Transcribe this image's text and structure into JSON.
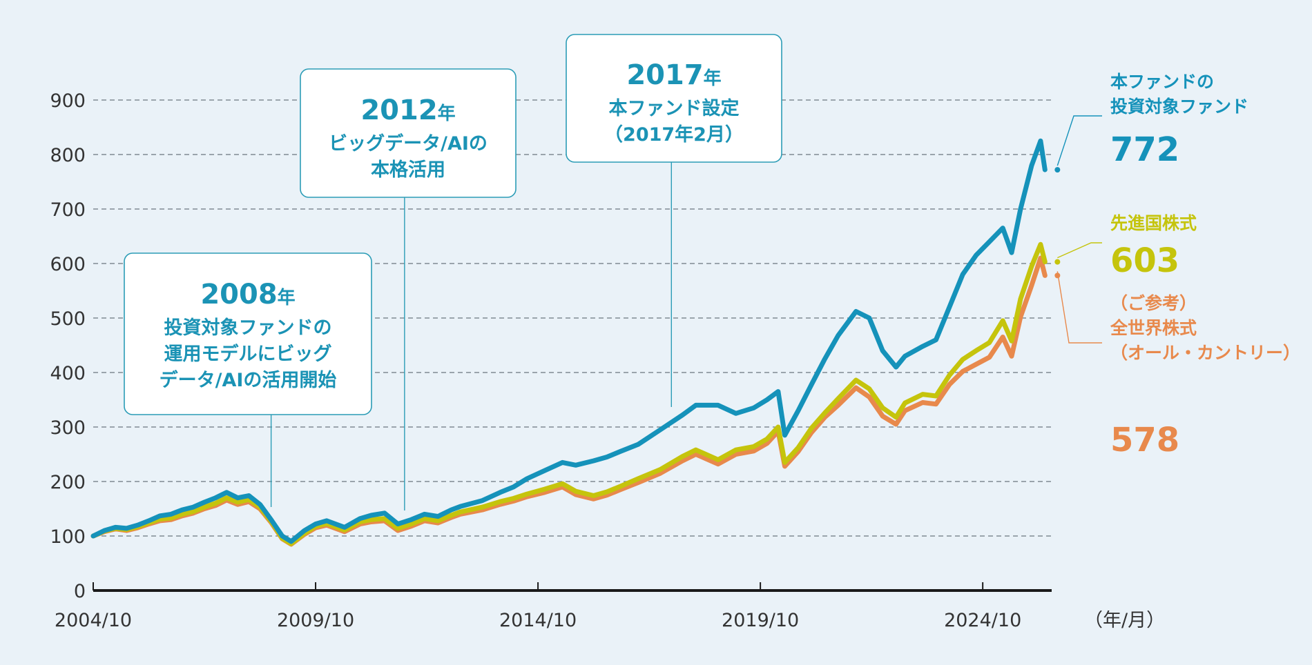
{
  "chart_data": {
    "type": "line",
    "title": "",
    "xlabel": "",
    "ylabel": "",
    "x_unit_label": "（年/月）",
    "ylim": [
      0,
      900
    ],
    "xlim": [
      2004.75,
      2026.3
    ],
    "y_ticks": [
      "0",
      "100",
      "200",
      "300",
      "400",
      "500",
      "600",
      "700",
      "800",
      "900"
    ],
    "x_ticks": [
      {
        "x": 2004.75,
        "label": "2004/10"
      },
      {
        "x": 2009.75,
        "label": "2009/10"
      },
      {
        "x": 2014.75,
        "label": "2014/10"
      },
      {
        "x": 2019.75,
        "label": "2019/10"
      },
      {
        "x": 2024.75,
        "label": "2024/10"
      }
    ],
    "grid": true,
    "series": [
      {
        "key": "world",
        "label": [
          "（ご参考）",
          "全世界株式",
          "（オール・カントリー）"
        ],
        "end_value": "578",
        "color": "#e8894c",
        "points": [
          [
            2004.75,
            100
          ],
          [
            2005.0,
            108
          ],
          [
            2005.25,
            113
          ],
          [
            2005.5,
            110
          ],
          [
            2005.75,
            115
          ],
          [
            2006.0,
            122
          ],
          [
            2006.25,
            128
          ],
          [
            2006.5,
            130
          ],
          [
            2006.75,
            137
          ],
          [
            2007.0,
            142
          ],
          [
            2007.25,
            150
          ],
          [
            2007.5,
            156
          ],
          [
            2007.75,
            166
          ],
          [
            2008.0,
            158
          ],
          [
            2008.25,
            163
          ],
          [
            2008.5,
            150
          ],
          [
            2008.75,
            125
          ],
          [
            2009.0,
            95
          ],
          [
            2009.2,
            85
          ],
          [
            2009.5,
            103
          ],
          [
            2009.75,
            115
          ],
          [
            2010.0,
            120
          ],
          [
            2010.4,
            108
          ],
          [
            2010.75,
            122
          ],
          [
            2011.0,
            126
          ],
          [
            2011.3,
            128
          ],
          [
            2011.6,
            110
          ],
          [
            2011.9,
            118
          ],
          [
            2012.2,
            128
          ],
          [
            2012.5,
            124
          ],
          [
            2012.8,
            134
          ],
          [
            2013.0,
            140
          ],
          [
            2013.5,
            148
          ],
          [
            2013.9,
            158
          ],
          [
            2014.2,
            164
          ],
          [
            2014.5,
            172
          ],
          [
            2014.9,
            180
          ],
          [
            2015.3,
            190
          ],
          [
            2015.6,
            176
          ],
          [
            2016.0,
            168
          ],
          [
            2016.3,
            175
          ],
          [
            2016.6,
            185
          ],
          [
            2017.0,
            198
          ],
          [
            2017.5,
            215
          ],
          [
            2018.0,
            238
          ],
          [
            2018.3,
            250
          ],
          [
            2018.8,
            232
          ],
          [
            2019.2,
            250
          ],
          [
            2019.6,
            256
          ],
          [
            2019.9,
            270
          ],
          [
            2020.15,
            292
          ],
          [
            2020.3,
            228
          ],
          [
            2020.6,
            255
          ],
          [
            2020.9,
            290
          ],
          [
            2021.2,
            318
          ],
          [
            2021.5,
            340
          ],
          [
            2021.9,
            372
          ],
          [
            2022.2,
            355
          ],
          [
            2022.5,
            320
          ],
          [
            2022.8,
            305
          ],
          [
            2023.0,
            330
          ],
          [
            2023.4,
            345
          ],
          [
            2023.7,
            342
          ],
          [
            2024.0,
            378
          ],
          [
            2024.3,
            402
          ],
          [
            2024.6,
            415
          ],
          [
            2024.9,
            428
          ],
          [
            2025.2,
            465
          ],
          [
            2025.4,
            430
          ],
          [
            2025.6,
            502
          ],
          [
            2025.85,
            560
          ],
          [
            2026.05,
            610
          ],
          [
            2026.15,
            578
          ]
        ]
      },
      {
        "key": "developed",
        "label": [
          "先進国株式"
        ],
        "end_value": "603",
        "color": "#c5c40c",
        "points": [
          [
            2004.75,
            100
          ],
          [
            2005.0,
            109
          ],
          [
            2005.25,
            114
          ],
          [
            2005.5,
            112
          ],
          [
            2005.75,
            117
          ],
          [
            2006.0,
            124
          ],
          [
            2006.25,
            131
          ],
          [
            2006.5,
            133
          ],
          [
            2006.75,
            140
          ],
          [
            2007.0,
            145
          ],
          [
            2007.25,
            153
          ],
          [
            2007.5,
            160
          ],
          [
            2007.75,
            170
          ],
          [
            2008.0,
            162
          ],
          [
            2008.25,
            167
          ],
          [
            2008.5,
            153
          ],
          [
            2008.75,
            127
          ],
          [
            2009.0,
            96
          ],
          [
            2009.2,
            86
          ],
          [
            2009.5,
            105
          ],
          [
            2009.75,
            118
          ],
          [
            2010.0,
            123
          ],
          [
            2010.4,
            111
          ],
          [
            2010.75,
            126
          ],
          [
            2011.0,
            130
          ],
          [
            2011.3,
            132
          ],
          [
            2011.6,
            114
          ],
          [
            2011.9,
            122
          ],
          [
            2012.2,
            132
          ],
          [
            2012.5,
            128
          ],
          [
            2012.8,
            138
          ],
          [
            2013.0,
            144
          ],
          [
            2013.5,
            153
          ],
          [
            2013.9,
            163
          ],
          [
            2014.2,
            169
          ],
          [
            2014.5,
            177
          ],
          [
            2014.9,
            186
          ],
          [
            2015.3,
            196
          ],
          [
            2015.6,
            182
          ],
          [
            2016.0,
            174
          ],
          [
            2016.3,
            181
          ],
          [
            2016.6,
            191
          ],
          [
            2017.0,
            205
          ],
          [
            2017.5,
            222
          ],
          [
            2018.0,
            246
          ],
          [
            2018.3,
            258
          ],
          [
            2018.8,
            240
          ],
          [
            2019.2,
            258
          ],
          [
            2019.6,
            264
          ],
          [
            2019.9,
            278
          ],
          [
            2020.15,
            300
          ],
          [
            2020.3,
            235
          ],
          [
            2020.6,
            262
          ],
          [
            2020.9,
            298
          ],
          [
            2021.2,
            326
          ],
          [
            2021.5,
            352
          ],
          [
            2021.9,
            386
          ],
          [
            2022.2,
            370
          ],
          [
            2022.5,
            335
          ],
          [
            2022.8,
            318
          ],
          [
            2023.0,
            344
          ],
          [
            2023.4,
            360
          ],
          [
            2023.7,
            357
          ],
          [
            2024.0,
            395
          ],
          [
            2024.3,
            424
          ],
          [
            2024.6,
            440
          ],
          [
            2024.9,
            455
          ],
          [
            2025.2,
            495
          ],
          [
            2025.4,
            458
          ],
          [
            2025.6,
            535
          ],
          [
            2025.85,
            595
          ],
          [
            2026.05,
            635
          ],
          [
            2026.15,
            603
          ]
        ]
      },
      {
        "key": "fund",
        "label": [
          "本ファンドの",
          "投資対象ファンド"
        ],
        "end_value": "772",
        "color": "#1592ba",
        "points": [
          [
            2004.75,
            100
          ],
          [
            2005.0,
            110
          ],
          [
            2005.25,
            116
          ],
          [
            2005.5,
            114
          ],
          [
            2005.75,
            120
          ],
          [
            2006.0,
            128
          ],
          [
            2006.25,
            137
          ],
          [
            2006.5,
            140
          ],
          [
            2006.75,
            148
          ],
          [
            2007.0,
            153
          ],
          [
            2007.25,
            162
          ],
          [
            2007.5,
            170
          ],
          [
            2007.75,
            180
          ],
          [
            2008.0,
            170
          ],
          [
            2008.25,
            174
          ],
          [
            2008.5,
            158
          ],
          [
            2008.75,
            130
          ],
          [
            2009.0,
            100
          ],
          [
            2009.2,
            90
          ],
          [
            2009.5,
            110
          ],
          [
            2009.75,
            122
          ],
          [
            2010.0,
            128
          ],
          [
            2010.4,
            116
          ],
          [
            2010.75,
            132
          ],
          [
            2011.0,
            138
          ],
          [
            2011.3,
            142
          ],
          [
            2011.6,
            122
          ],
          [
            2011.9,
            130
          ],
          [
            2012.2,
            140
          ],
          [
            2012.5,
            136
          ],
          [
            2012.8,
            148
          ],
          [
            2013.0,
            154
          ],
          [
            2013.5,
            165
          ],
          [
            2013.9,
            180
          ],
          [
            2014.2,
            190
          ],
          [
            2014.5,
            205
          ],
          [
            2014.9,
            220
          ],
          [
            2015.3,
            235
          ],
          [
            2015.6,
            230
          ],
          [
            2016.0,
            238
          ],
          [
            2016.3,
            245
          ],
          [
            2016.6,
            255
          ],
          [
            2017.0,
            268
          ],
          [
            2017.5,
            295
          ],
          [
            2018.0,
            322
          ],
          [
            2018.3,
            340
          ],
          [
            2018.8,
            340
          ],
          [
            2019.2,
            325
          ],
          [
            2019.6,
            335
          ],
          [
            2019.9,
            350
          ],
          [
            2020.15,
            365
          ],
          [
            2020.3,
            285
          ],
          [
            2020.6,
            330
          ],
          [
            2020.9,
            378
          ],
          [
            2021.2,
            425
          ],
          [
            2021.5,
            468
          ],
          [
            2021.9,
            512
          ],
          [
            2022.2,
            500
          ],
          [
            2022.5,
            440
          ],
          [
            2022.8,
            410
          ],
          [
            2023.0,
            430
          ],
          [
            2023.4,
            448
          ],
          [
            2023.7,
            460
          ],
          [
            2024.0,
            520
          ],
          [
            2024.3,
            580
          ],
          [
            2024.6,
            615
          ],
          [
            2024.9,
            640
          ],
          [
            2025.2,
            665
          ],
          [
            2025.4,
            620
          ],
          [
            2025.6,
            700
          ],
          [
            2025.85,
            780
          ],
          [
            2026.05,
            825
          ],
          [
            2026.15,
            772
          ]
        ]
      }
    ],
    "annotations": [
      {
        "key": "a2008",
        "year": "2008",
        "suffix": "年",
        "lines": [
          "投資対象ファンドの",
          "運用モデルにビッグ",
          "データ/AIの活用開始"
        ],
        "x": 2008.75
      },
      {
        "key": "a2012",
        "year": "2012",
        "suffix": "年",
        "lines": [
          "ビッグデータ/AIの",
          "本格活用"
        ],
        "x": 2011.75
      },
      {
        "key": "a2017",
        "year": "2017",
        "suffix": "年",
        "lines": [
          "本ファンド設定",
          "（2017年2月）"
        ],
        "x": 2017.75
      }
    ]
  }
}
